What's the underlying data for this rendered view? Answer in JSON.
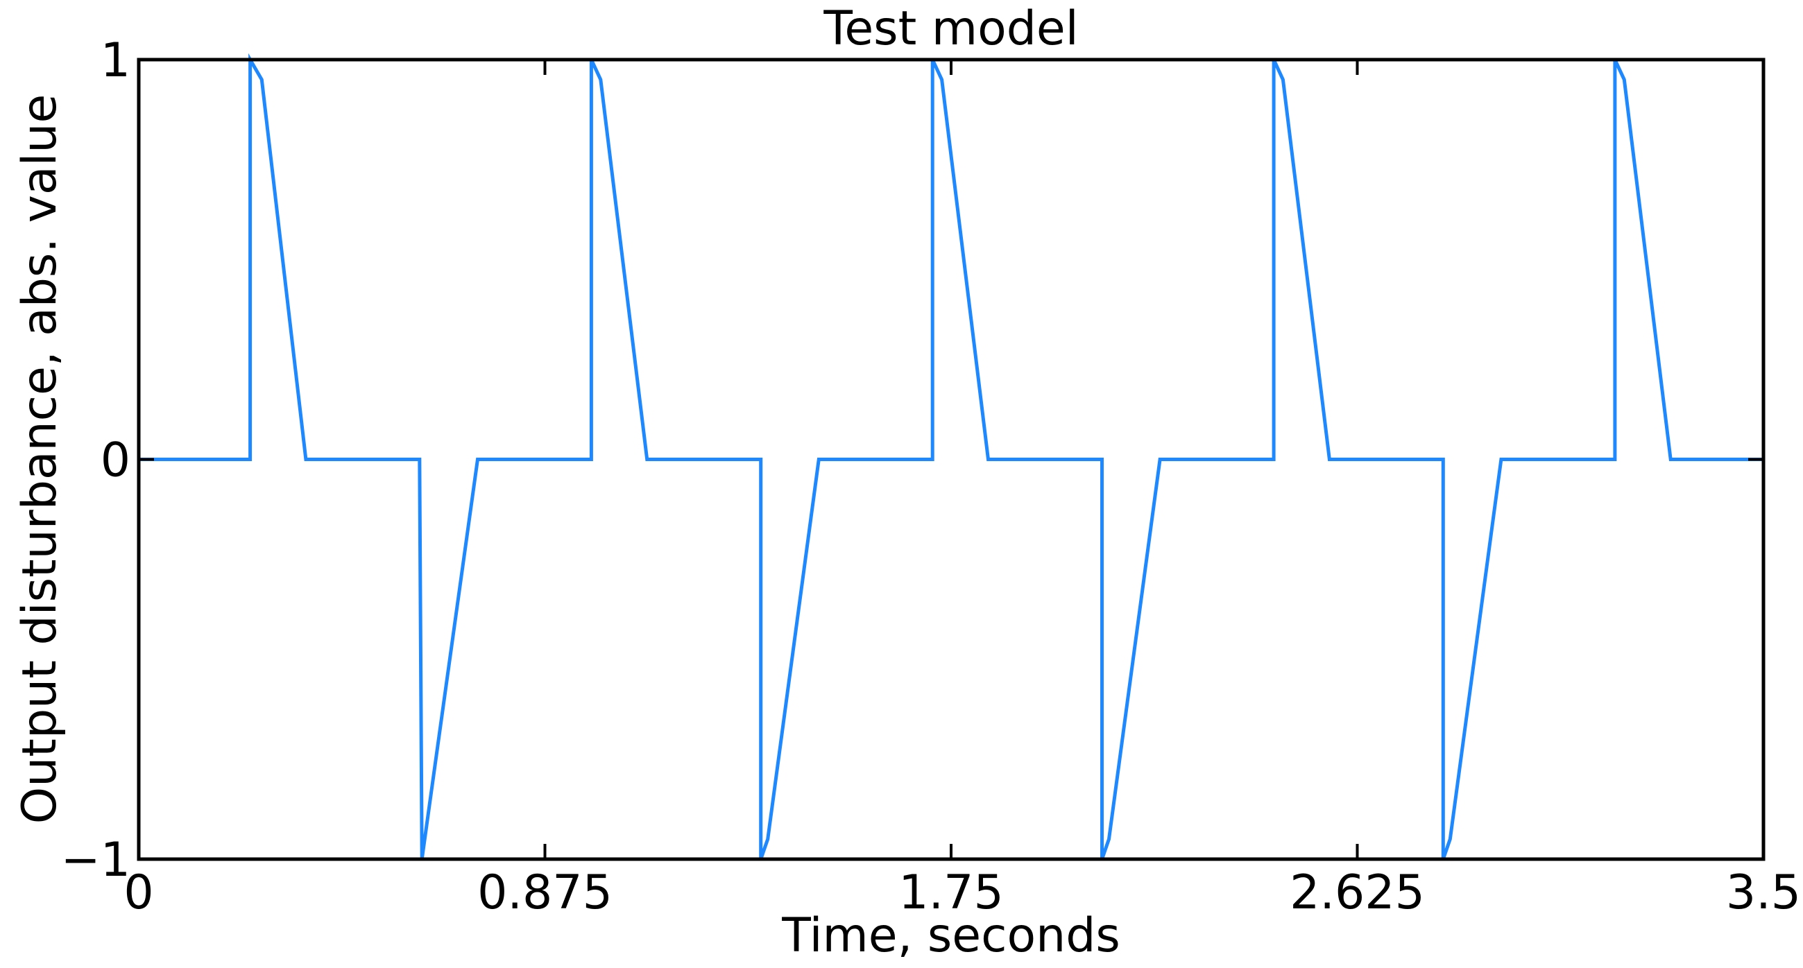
{
  "chart_data": {
    "type": "line",
    "title": "Test model",
    "xlabel": "Time, seconds",
    "ylabel": "Output disturbance, abs. value",
    "xlim": [
      0,
      3.5
    ],
    "ylim": [
      -1,
      1
    ],
    "x_ticks": [
      0,
      0.875,
      1.75,
      2.625,
      3.5
    ],
    "x_tick_labels": [
      "0",
      "0.875",
      "1.75",
      "2.625",
      "3.5"
    ],
    "y_ticks": [
      -1,
      0,
      1
    ],
    "y_tick_labels": [
      "−1",
      "0",
      "1"
    ],
    "grid": false,
    "line_color": "#1e88ff",
    "series": [
      {
        "x": [
          0,
          0.24,
          0.24,
          0.265,
          0.36,
          0.36,
          0.36,
          0.605,
          0.61,
          0.73,
          0.73,
          0.975,
          0.975,
          0.995,
          1.095,
          1.095,
          1.34,
          1.34,
          1.355,
          1.465,
          1.465,
          1.71,
          1.71,
          1.73,
          1.83,
          1.83,
          2.075,
          2.075,
          2.09,
          2.2,
          2.2,
          2.445,
          2.445,
          2.465,
          2.565,
          2.565,
          2.81,
          2.81,
          2.825,
          2.935,
          2.935,
          3.18,
          3.18,
          3.2,
          3.3,
          3.5
        ],
        "y": [
          0,
          0,
          1,
          0.95,
          0,
          0,
          0,
          0,
          -1,
          0,
          0,
          0,
          1,
          0.95,
          0,
          0,
          0,
          -1,
          -0.95,
          0,
          0,
          0,
          1,
          0.95,
          0,
          0,
          0,
          -1,
          -0.95,
          0,
          0,
          0,
          1,
          0.95,
          0,
          0,
          0,
          -1,
          -0.95,
          0,
          0,
          0,
          1,
          0.95,
          0,
          0
        ]
      }
    ]
  }
}
